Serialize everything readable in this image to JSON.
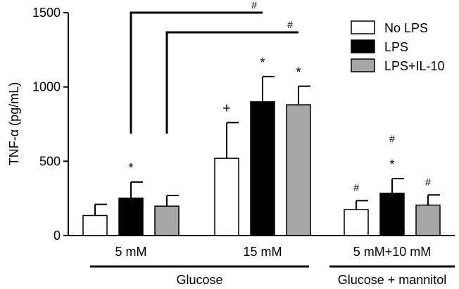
{
  "chart_data": {
    "type": "bar",
    "ylabel": "TNF-α (pg/mL)",
    "ylim": [
      0,
      1500
    ],
    "yticks": [
      0,
      500,
      1000,
      1500
    ],
    "categories": [
      "5 mM",
      "15 mM",
      "5 mM+10 mM"
    ],
    "groups": [
      {
        "label": "Glucose",
        "categories": [
          "5 mM",
          "15 mM"
        ]
      },
      {
        "label": "Glucose + mannitol",
        "categories": [
          "5 mM+10 mM"
        ]
      }
    ],
    "series": [
      {
        "name": "No LPS",
        "color": "#ffffff",
        "values": [
          135,
          520,
          175
        ],
        "errors": [
          75,
          240,
          60
        ],
        "annotations": [
          "",
          "+",
          "#"
        ]
      },
      {
        "name": "LPS",
        "color": "#000000",
        "values": [
          252,
          900,
          285
        ],
        "errors": [
          108,
          170,
          98
        ],
        "annotations": [
          "*",
          "*",
          "*"
        ]
      },
      {
        "name": "LPS+IL-10",
        "color": "#a6a6a6",
        "values": [
          198,
          880,
          205
        ],
        "errors": [
          72,
          125,
          68
        ],
        "annotations": [
          "",
          "*",
          "#"
        ]
      }
    ],
    "extra_marks": [
      {
        "category": 2,
        "series": 1,
        "text": "#"
      }
    ],
    "significance_brackets": [
      {
        "from": [
          0,
          1
        ],
        "to": [
          1,
          1
        ],
        "text": "#"
      },
      {
        "from": [
          0,
          2
        ],
        "to": [
          1,
          2
        ],
        "text": "#"
      }
    ],
    "legend": "top-right",
    "grid": false
  }
}
